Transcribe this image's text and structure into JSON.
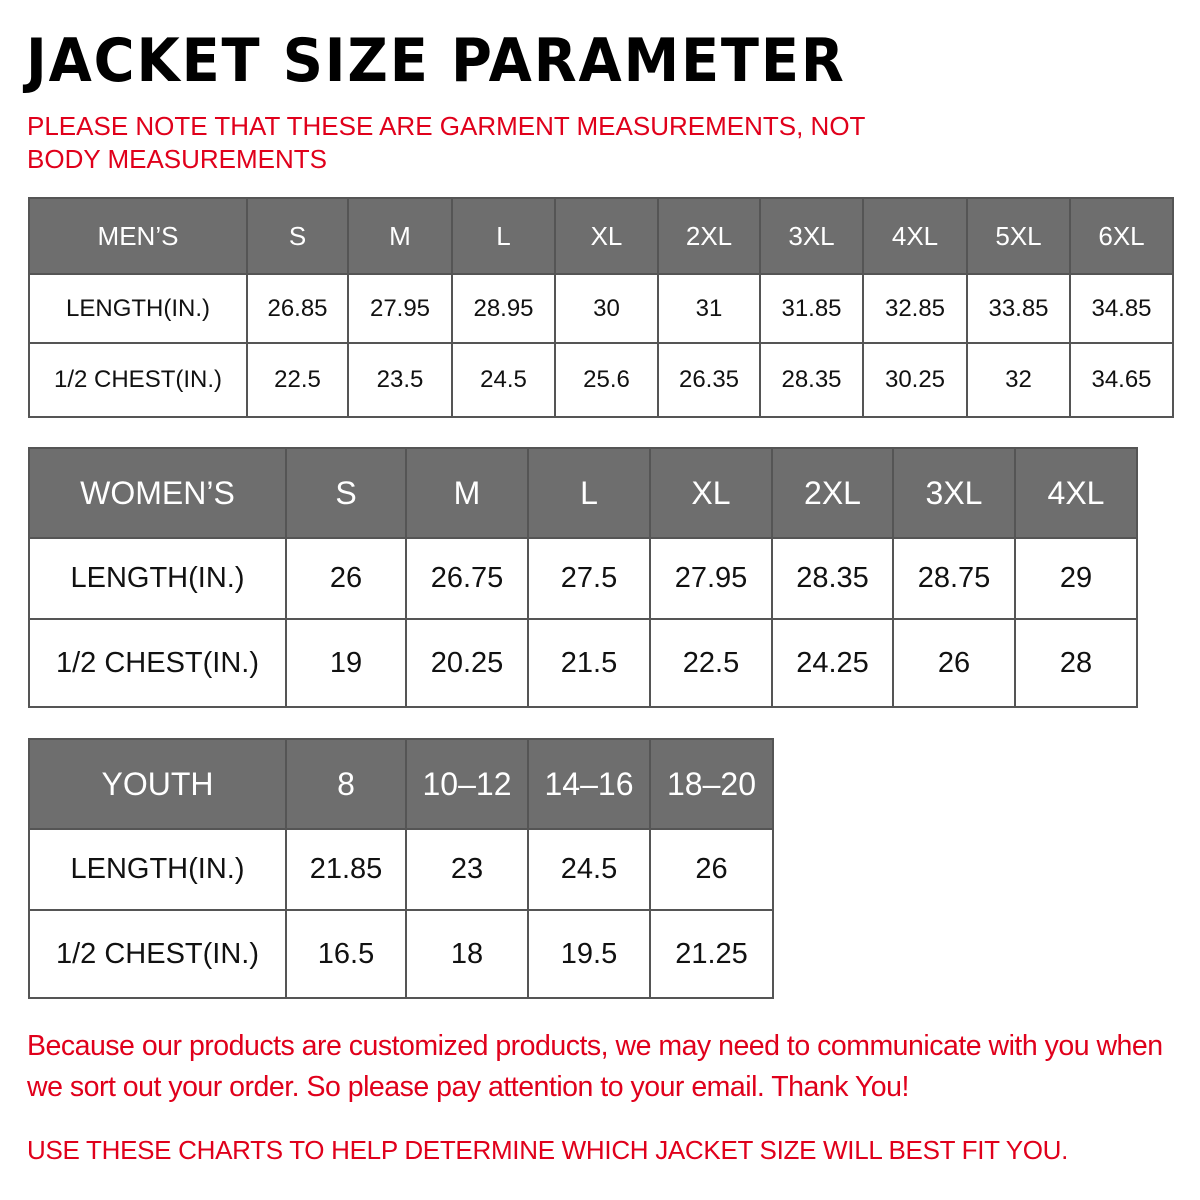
{
  "title": "JACKET SIZE PARAMETER",
  "note_top": "PLEASE NOTE THAT THESE ARE GARMENT MEASUREMENTS, NOT BODY MEASUREMENTS",
  "colors": {
    "header_bg": "#6e6e6e",
    "accent_red": "#e0001b"
  },
  "tables": {
    "men": {
      "header": [
        "MEN’S",
        "S",
        "M",
        "L",
        "XL",
        "2XL",
        "3XL",
        "4XL",
        "5XL",
        "6XL"
      ],
      "rows": [
        [
          "LENGTH(IN.)",
          "26.85",
          "27.95",
          "28.95",
          "30",
          "31",
          "31.85",
          "32.85",
          "33.85",
          "34.85"
        ],
        [
          "1/2 CHEST(IN.)",
          "22.5",
          "23.5",
          "24.5",
          "25.6",
          "26.35",
          "28.35",
          "30.25",
          "32",
          "34.65"
        ]
      ]
    },
    "women": {
      "header": [
        "WOMEN’S",
        "S",
        "M",
        "L",
        "XL",
        "2XL",
        "3XL",
        "4XL"
      ],
      "rows": [
        [
          "LENGTH(IN.)",
          "26",
          "26.75",
          "27.5",
          "27.95",
          "28.35",
          "28.75",
          "29"
        ],
        [
          "1/2 CHEST(IN.)",
          "19",
          "20.25",
          "21.5",
          "22.5",
          "24.25",
          "26",
          "28"
        ]
      ]
    },
    "youth": {
      "header": [
        "YOUTH",
        "8",
        "10–12",
        "14–16",
        "18–20"
      ],
      "rows": [
        [
          "LENGTH(IN.)",
          "21.85",
          "23",
          "24.5",
          "26"
        ],
        [
          "1/2 CHEST(IN.)",
          "16.5",
          "18",
          "19.5",
          "21.25"
        ]
      ]
    }
  },
  "footer_note": "Because our products are customized products, we may need to communicate with you when we sort out your order. So please pay attention to your email. Thank You!",
  "footer_instruction": "USE THESE CHARTS TO HELP DETERMINE WHICH JACKET SIZE WILL BEST FIT YOU."
}
